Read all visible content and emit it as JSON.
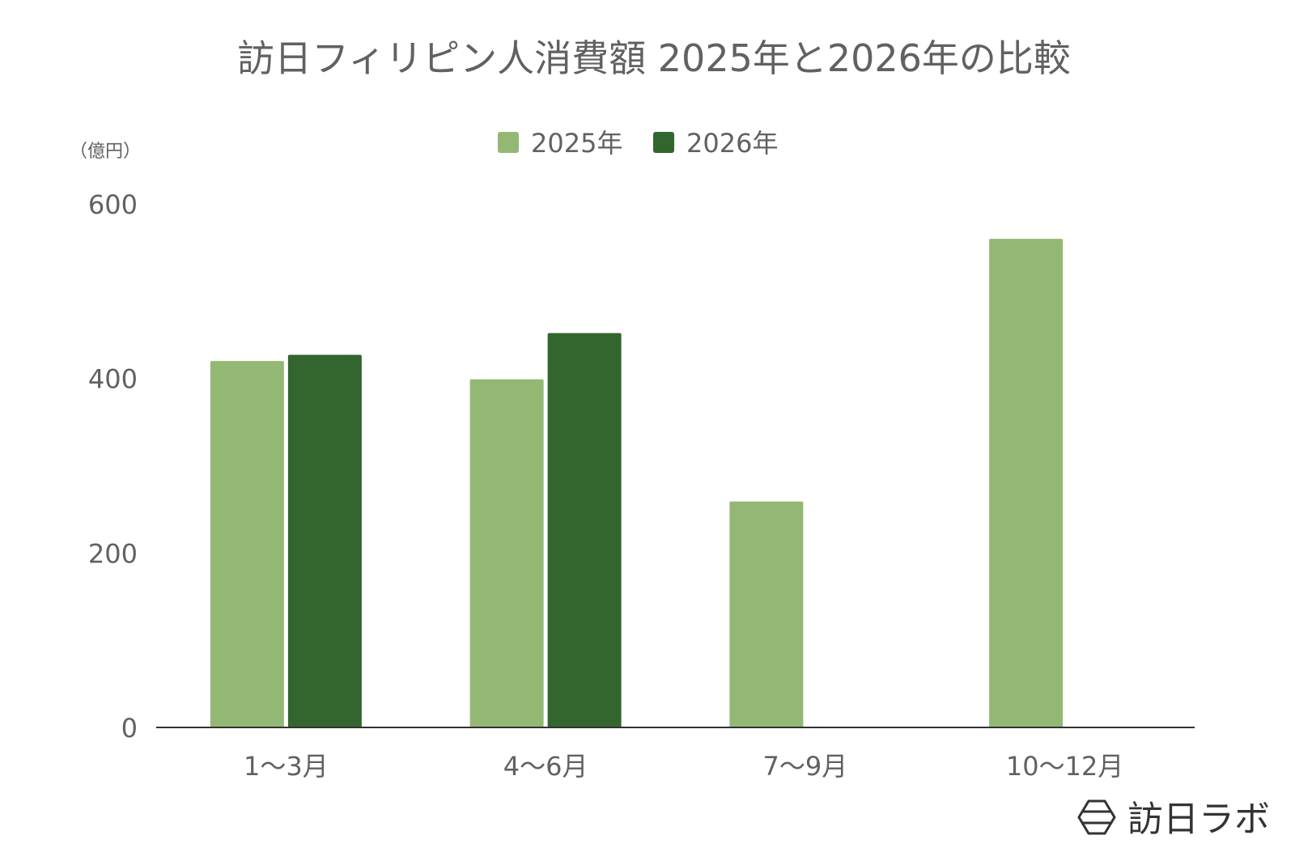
{
  "chart_data": {
    "type": "bar",
    "title": "訪日フィリピン人消費額 2025年と2026年の比較",
    "unit_label": "（億円）",
    "categories": [
      "1〜3月",
      "4〜6月",
      "7〜9月",
      "10〜12月"
    ],
    "series": [
      {
        "name": "2025年",
        "values": [
          420,
          399,
          259,
          560
        ],
        "color": "#93b874"
      },
      {
        "name": "2026年",
        "values": [
          427,
          452,
          null,
          null
        ],
        "color": "#33652e"
      }
    ],
    "ylim": [
      0,
      600
    ],
    "yticks": [
      0,
      200,
      400,
      600
    ],
    "grid": false,
    "legend_position": "top-center"
  },
  "branding": {
    "logo_text": "訪日ラボ",
    "logo_icon": "hexagon-icon"
  }
}
